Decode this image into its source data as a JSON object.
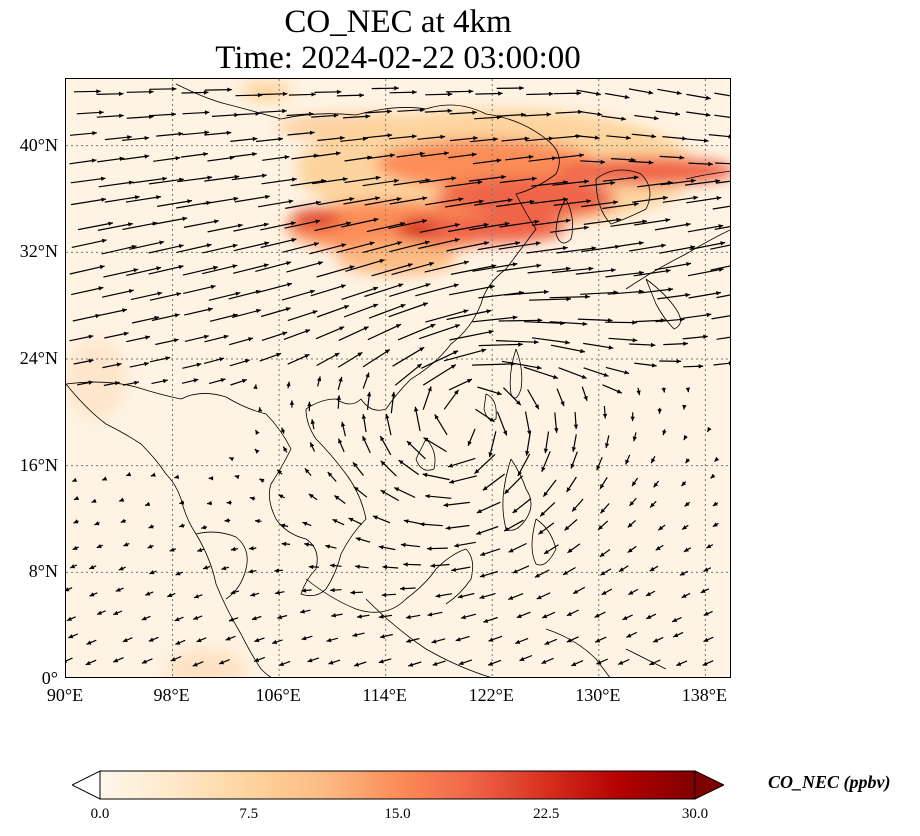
{
  "title": {
    "line1": "CO_NEC at 4km",
    "line2": "Time: 2024-02-22 03:00:00"
  },
  "map": {
    "projection": "PlateCarree",
    "lon_range": [
      90,
      140
    ],
    "lat_range": [
      0,
      45
    ],
    "gridlines": "dotted grey",
    "coastlines": true,
    "lon_ticks": [
      "90°E",
      "98°E",
      "106°E",
      "114°E",
      "122°E",
      "130°E",
      "138°E"
    ],
    "lat_ticks": [
      "0°",
      "8°N",
      "16°N",
      "24°N",
      "32°N",
      "40°N"
    ],
    "colormap": "OrRd",
    "wind_vectors": true
  },
  "colorbar": {
    "label": "CO_NEC (ppbv)",
    "min": 0,
    "max": 30,
    "extend": "both",
    "ticks": [
      "0.0",
      "7.5",
      "15.0",
      "22.5",
      "30.0"
    ],
    "colors": [
      "#fff7ec",
      "#fee8c8",
      "#fdd49e",
      "#fdbb84",
      "#fc8d59",
      "#ef6548",
      "#d7301f",
      "#b30000",
      "#7f0000"
    ]
  }
}
